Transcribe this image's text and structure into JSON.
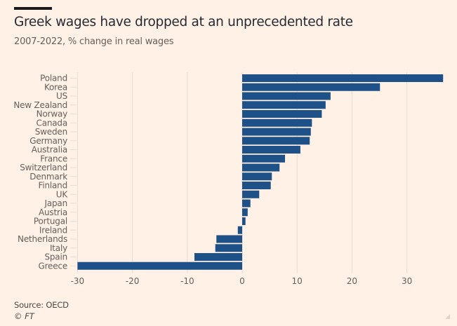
{
  "header": {
    "title": "Greek wages have dropped at an unprecedented rate",
    "subtitle": "2007-2022, % change in real wages"
  },
  "footer": {
    "source": "Source: OECD",
    "copyright": "© FT"
  },
  "colors": {
    "background": "#fff1e5",
    "bar": "#1f5189",
    "gridline": "#e9dcd1",
    "tick_text": "#66605c"
  },
  "chart_data": {
    "type": "bar",
    "orientation": "horizontal",
    "title": "Greek wages have dropped at an unprecedented rate",
    "subtitle": "2007-2022, % change in real wages",
    "xlabel": "",
    "ylabel": "",
    "xlim": [
      -30,
      37
    ],
    "xticks": [
      -30,
      -20,
      -10,
      0,
      10,
      20,
      30
    ],
    "xtick_labels": [
      "-30",
      "-20",
      "-10",
      "0",
      "10",
      "20",
      "30"
    ],
    "grid": true,
    "categories": [
      "Poland",
      "Korea",
      "US",
      "New Zealand",
      "Norway",
      "Canada",
      "Sweden",
      "Germany",
      "Australia",
      "France",
      "Switzerland",
      "Denmark",
      "Finland",
      "UK",
      "Japan",
      "Austria",
      "Portugal",
      "Ireland",
      "Netherlands",
      "Italy",
      "Spain",
      "Greece"
    ],
    "values": [
      36.6,
      25.1,
      16.1,
      15.2,
      14.5,
      12.7,
      12.5,
      12.3,
      10.6,
      7.8,
      6.8,
      5.4,
      5.2,
      3.1,
      1.5,
      1.0,
      0.6,
      -0.8,
      -4.7,
      -4.9,
      -8.7,
      -30.0
    ],
    "source": "Source: OECD"
  }
}
